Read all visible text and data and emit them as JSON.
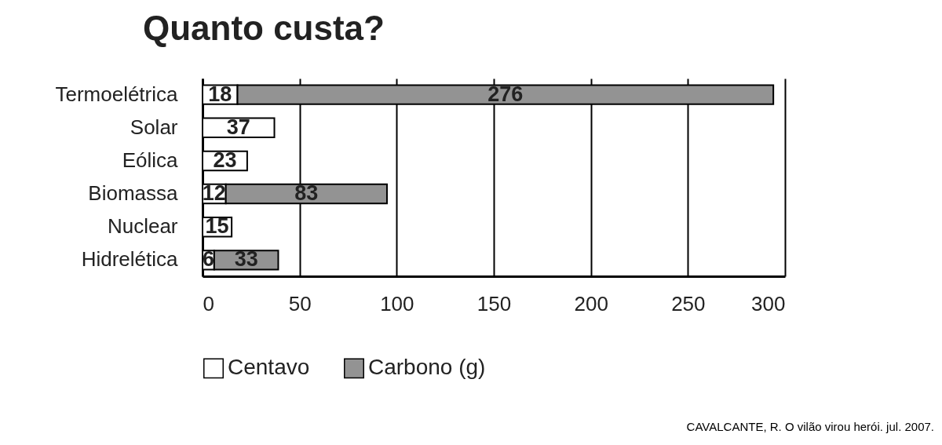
{
  "chart_data": {
    "type": "bar",
    "title": "Quanto custa?",
    "orientation": "horizontal",
    "stacked": true,
    "categories": [
      "Termoelétrica",
      "Solar",
      "Eólica",
      "Biomassa",
      "Nuclear",
      "Hidrelética"
    ],
    "series": [
      {
        "name": "Centavo",
        "color": "#ffffff",
        "values": [
          18,
          37,
          23,
          12,
          15,
          6
        ]
      },
      {
        "name": "Carbono (g)",
        "color": "#939393",
        "values": [
          276,
          null,
          null,
          83,
          null,
          33
        ]
      }
    ],
    "xlim": [
      0,
      300
    ],
    "xticks": [
      0,
      50,
      100,
      150,
      200,
      250,
      300
    ],
    "grid": "x",
    "legend": "bottom",
    "data_labels": true,
    "annotations": [
      "CAVALCANTE, R. O vilão virou herói. jul. 2007."
    ]
  }
}
